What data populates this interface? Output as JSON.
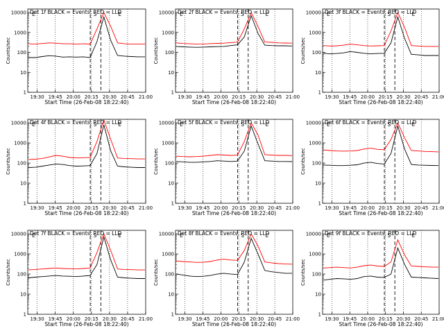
{
  "chart_data": [
    {
      "type": "line",
      "title": "Det 1f BLACK = Events, RED = LLD",
      "xlabel": "Start Time (26-Feb-08 18:22:40)",
      "ylabel": "Counts/sec",
      "x_ticks": [
        "19:30",
        "19:45",
        "20:00",
        "20:15",
        "20:30",
        "20:45",
        "21:00"
      ],
      "y_ticks": [
        "1",
        "10",
        "100",
        "1000",
        "10000"
      ],
      "y_scale": "log",
      "ylim": [
        1,
        15000
      ],
      "markers": [
        "E",
        "S",
        "E"
      ],
      "series": [
        {
          "color": "#000000",
          "values": [
            55,
            55,
            62,
            68,
            65,
            58,
            60,
            58,
            60,
            55,
            350,
            6000,
            400,
            70,
            65,
            62,
            60,
            60
          ]
        },
        {
          "color": "#ff0000",
          "values": [
            270,
            260,
            280,
            300,
            290,
            270,
            270,
            260,
            270,
            260,
            1500,
            10000,
            2000,
            300,
            270,
            260,
            260,
            260
          ]
        }
      ]
    },
    {
      "type": "line",
      "title": "Det 2f BLACK = Events, RED = LLD",
      "xlabel": "Start Time (26-Feb-08 18:22:40)",
      "ylabel": "Counts/sec",
      "x_ticks": [
        "19:30",
        "19:45",
        "20:00",
        "20:15",
        "20:30",
        "20:45",
        "21:00"
      ],
      "y_ticks": [
        "1",
        "10",
        "100",
        "1000",
        "10000"
      ],
      "y_scale": "log",
      "ylim": [
        1,
        15000
      ],
      "markers": [
        "E",
        "S",
        "E"
      ],
      "series": [
        {
          "color": "#000000",
          "values": [
            200,
            190,
            185,
            180,
            185,
            190,
            195,
            200,
            220,
            240,
            600,
            7000,
            900,
            230,
            220,
            215,
            215,
            210
          ]
        },
        {
          "color": "#ff0000",
          "values": [
            300,
            280,
            270,
            260,
            265,
            275,
            285,
            290,
            310,
            330,
            1500,
            10000,
            2000,
            330,
            320,
            300,
            295,
            290
          ]
        }
      ]
    },
    {
      "type": "line",
      "title": "Det 3f BLACK = Events, RED = LLD",
      "xlabel": "Start Time (26-Feb-08 18:22:40)",
      "ylabel": "Counts/sec",
      "x_ticks": [
        "19:30",
        "19:45",
        "20:00",
        "20:15",
        "20:30",
        "20:45",
        "21:00"
      ],
      "y_ticks": [
        "1",
        "10",
        "100",
        "1000",
        "10000"
      ],
      "y_scale": "log",
      "ylim": [
        1,
        15000
      ],
      "markers": [
        "E",
        "S",
        "E"
      ],
      "series": [
        {
          "color": "#000000",
          "values": [
            90,
            85,
            88,
            95,
            110,
            100,
            90,
            85,
            88,
            90,
            300,
            6000,
            500,
            80,
            75,
            70,
            70,
            70
          ]
        },
        {
          "color": "#ff0000",
          "values": [
            220,
            210,
            215,
            230,
            260,
            240,
            220,
            210,
            215,
            220,
            1200,
            10000,
            1800,
            220,
            210,
            200,
            200,
            200
          ]
        }
      ]
    },
    {
      "type": "line",
      "title": "Det 4f BLACK = Events, RED = LLD",
      "xlabel": "Start Time (26-Feb-08 18:22:40)",
      "ylabel": "Counts/sec",
      "x_ticks": [
        "19:30",
        "19:45",
        "20:00",
        "20:15",
        "20:30",
        "20:45",
        "21:00"
      ],
      "y_ticks": [
        "1",
        "10",
        "100",
        "1000",
        "10000"
      ],
      "y_scale": "log",
      "ylim": [
        1,
        15000
      ],
      "markers": [
        "E",
        "S",
        "E"
      ],
      "series": [
        {
          "color": "#000000",
          "values": [
            60,
            62,
            70,
            80,
            90,
            85,
            75,
            70,
            72,
            75,
            300,
            8000,
            400,
            70,
            65,
            62,
            60,
            60
          ]
        },
        {
          "color": "#ff0000",
          "values": [
            150,
            155,
            170,
            200,
            240,
            220,
            190,
            180,
            185,
            190,
            1200,
            14000,
            1500,
            180,
            170,
            165,
            160,
            160
          ]
        }
      ]
    },
    {
      "type": "line",
      "title": "Det 5f BLACK = Events, RED = LLD",
      "xlabel": "Start Time (26-Feb-08 18:22:40)",
      "ylabel": "Counts/sec",
      "x_ticks": [
        "19:30",
        "19:45",
        "20:00",
        "20:15",
        "20:30",
        "20:45",
        "21:00"
      ],
      "y_ticks": [
        "1",
        "10",
        "100",
        "1000",
        "10000"
      ],
      "y_scale": "log",
      "ylim": [
        1,
        15000
      ],
      "markers": [
        "E",
        "S",
        "E"
      ],
      "series": [
        {
          "color": "#000000",
          "values": [
            120,
            115,
            110,
            110,
            115,
            120,
            130,
            125,
            120,
            125,
            400,
            7000,
            900,
            130,
            125,
            120,
            120,
            118
          ]
        },
        {
          "color": "#ff0000",
          "values": [
            220,
            210,
            205,
            210,
            220,
            240,
            260,
            250,
            240,
            250,
            1200,
            10000,
            2500,
            260,
            250,
            240,
            240,
            235
          ]
        }
      ]
    },
    {
      "type": "line",
      "title": "Det 6f BLACK = Events, RED = LLD",
      "xlabel": "Start Time (26-Feb-08 18:22:40)",
      "ylabel": "Counts/sec",
      "x_ticks": [
        "19:30",
        "19:45",
        "20:00",
        "20:15",
        "20:30",
        "20:45",
        "21:00"
      ],
      "y_ticks": [
        "1",
        "10",
        "100",
        "1000",
        "10000"
      ],
      "y_scale": "log",
      "ylim": [
        1,
        15000
      ],
      "markers": [
        "E",
        "S",
        "E"
      ],
      "series": [
        {
          "color": "#000000",
          "values": [
            80,
            78,
            75,
            75,
            78,
            82,
            100,
            110,
            95,
            90,
            300,
            7000,
            500,
            85,
            80,
            78,
            76,
            75
          ]
        },
        {
          "color": "#ff0000",
          "values": [
            450,
            420,
            400,
            390,
            400,
            420,
            500,
            550,
            480,
            460,
            1500,
            10000,
            1800,
            420,
            400,
            380,
            370,
            360
          ]
        }
      ]
    },
    {
      "type": "line",
      "title": "Det 7f BLACK = Events, RED = LLD",
      "xlabel": "Start Time (26-Feb-08 18:22:40)",
      "ylabel": "Counts/sec",
      "x_ticks": [
        "19:30",
        "19:45",
        "20:00",
        "20:15",
        "20:30",
        "20:45",
        "21:00"
      ],
      "y_ticks": [
        "1",
        "10",
        "100",
        "1000",
        "10000"
      ],
      "y_scale": "log",
      "ylim": [
        1,
        15000
      ],
      "markers": [
        "E",
        "S",
        "E"
      ],
      "series": [
        {
          "color": "#000000",
          "values": [
            65,
            70,
            75,
            80,
            85,
            80,
            78,
            75,
            80,
            85,
            300,
            7000,
            500,
            70,
            65,
            62,
            60,
            60
          ]
        },
        {
          "color": "#ff0000",
          "values": [
            160,
            170,
            180,
            190,
            200,
            190,
            185,
            180,
            190,
            200,
            1200,
            10000,
            1500,
            180,
            170,
            165,
            160,
            160
          ]
        }
      ]
    },
    {
      "type": "line",
      "title": "Det 8f BLACK = Events, RED = LLD",
      "xlabel": "Start Time (26-Feb-08 18:22:40)",
      "ylabel": "Counts/sec",
      "x_ticks": [
        "19:30",
        "19:45",
        "20:00",
        "20:15",
        "20:30",
        "20:45",
        "21:00"
      ],
      "y_ticks": [
        "1",
        "10",
        "100",
        "1000",
        "10000"
      ],
      "y_scale": "log",
      "ylim": [
        1,
        15000
      ],
      "markers": [
        "E",
        "S",
        "E"
      ],
      "series": [
        {
          "color": "#000000",
          "values": [
            100,
            90,
            80,
            75,
            78,
            85,
            100,
            110,
            100,
            95,
            400,
            6000,
            1000,
            150,
            130,
            120,
            110,
            110
          ]
        },
        {
          "color": "#ff0000",
          "values": [
            450,
            420,
            400,
            380,
            390,
            420,
            500,
            550,
            500,
            480,
            1500,
            10000,
            2500,
            400,
            360,
            330,
            320,
            310
          ]
        }
      ]
    },
    {
      "type": "line",
      "title": "Det 9f BLACK = Events, RED = LLD",
      "xlabel": "Start Time (26-Feb-08 18:22:40)",
      "ylabel": "Counts/sec",
      "x_ticks": [
        "19:30",
        "19:45",
        "20:00",
        "20:15",
        "20:30",
        "20:45",
        "21:00"
      ],
      "y_ticks": [
        "1",
        "10",
        "100",
        "1000",
        "10000"
      ],
      "y_scale": "log",
      "ylim": [
        1,
        15000
      ],
      "markers": [
        "E",
        "S",
        "E"
      ],
      "series": [
        {
          "color": "#000000",
          "values": [
            50,
            55,
            60,
            58,
            55,
            60,
            75,
            80,
            70,
            68,
            100,
            2000,
            300,
            70,
            68,
            65,
            62,
            60
          ]
        },
        {
          "color": "#ff0000",
          "values": [
            200,
            210,
            220,
            210,
            200,
            220,
            260,
            280,
            250,
            240,
            400,
            5000,
            900,
            250,
            240,
            230,
            220,
            220
          ]
        }
      ]
    }
  ]
}
